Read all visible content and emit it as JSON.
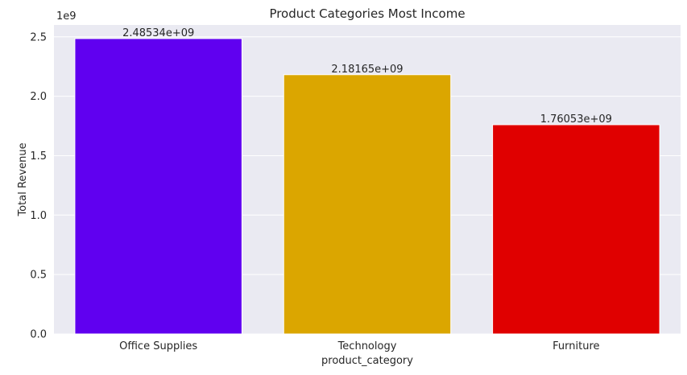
{
  "chart_data": {
    "type": "bar",
    "title": "Product Categories Most Income",
    "xlabel": "product_category",
    "ylabel": "Total Revenue",
    "y_offset_label": "1e9",
    "categories": [
      "Office Supplies",
      "Technology",
      "Furniture"
    ],
    "values": [
      2485340000,
      2181650000,
      1760530000
    ],
    "data_labels": [
      "2.48534e+09",
      "2.18165e+09",
      "1.76053e+09"
    ],
    "colors": [
      "#6000f0",
      "#dba600",
      "#e00000"
    ],
    "ylim": [
      0,
      2.6
    ],
    "ytick_values": [
      0.0,
      0.5,
      1.0,
      1.5,
      2.0,
      2.5
    ],
    "ytick_labels": [
      "0.0",
      "0.5",
      "1.0",
      "1.5",
      "2.0",
      "2.5"
    ],
    "grid": true,
    "background": "#eaeaf2",
    "legend": "none"
  }
}
